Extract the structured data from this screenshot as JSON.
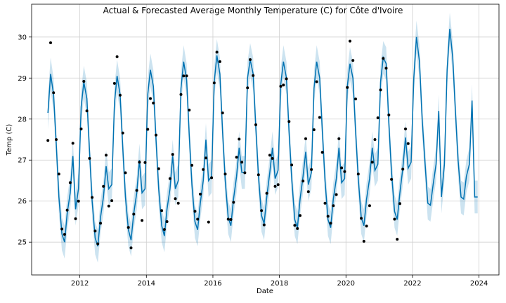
{
  "chart_data": {
    "type": "line",
    "title": "Actual & Forecasted Average Monthly Temperature (C) for Côte d'Ivoire",
    "xlabel": "Date",
    "ylabel": "Temp (C)",
    "xlim": [
      2010.55,
      2024.6
    ],
    "ylim": [
      24.2,
      30.8
    ],
    "grid": true,
    "x_ticks": [
      2012,
      2014,
      2016,
      2018,
      2020,
      2022,
      2024
    ],
    "x_tick_labels": [
      "2012",
      "2014",
      "2016",
      "2018",
      "2020",
      "2022",
      "2024"
    ],
    "y_ticks": [
      25,
      26,
      27,
      28,
      29,
      30
    ],
    "y_tick_labels": [
      "25",
      "26",
      "27",
      "28",
      "29",
      "30"
    ],
    "colors": {
      "forecast": "#0072B2",
      "interval": "#0072B2",
      "actual": "#000000"
    },
    "series": [
      {
        "name": "forecast",
        "kind": "line",
        "x": [
          2011.04,
          2011.12,
          2011.21,
          2011.29,
          2011.37,
          2011.46,
          2011.54,
          2011.62,
          2011.71,
          2011.79,
          2011.87,
          2011.96,
          2012.04,
          2012.12,
          2012.21,
          2012.29,
          2012.37,
          2012.46,
          2012.54,
          2012.62,
          2012.71,
          2012.79,
          2012.87,
          2012.96,
          2013.04,
          2013.12,
          2013.21,
          2013.29,
          2013.37,
          2013.46,
          2013.54,
          2013.62,
          2013.71,
          2013.79,
          2013.87,
          2013.96,
          2014.04,
          2014.12,
          2014.21,
          2014.29,
          2014.37,
          2014.46,
          2014.54,
          2014.62,
          2014.71,
          2014.79,
          2014.87,
          2014.96,
          2015.04,
          2015.12,
          2015.21,
          2015.29,
          2015.37,
          2015.46,
          2015.54,
          2015.62,
          2015.71,
          2015.79,
          2015.87,
          2015.96,
          2016.04,
          2016.12,
          2016.21,
          2016.29,
          2016.37,
          2016.46,
          2016.54,
          2016.62,
          2016.71,
          2016.79,
          2016.87,
          2016.96,
          2017.04,
          2017.12,
          2017.21,
          2017.29,
          2017.37,
          2017.46,
          2017.54,
          2017.62,
          2017.71,
          2017.79,
          2017.87,
          2017.96,
          2018.04,
          2018.12,
          2018.21,
          2018.29,
          2018.37,
          2018.46,
          2018.54,
          2018.62,
          2018.71,
          2018.79,
          2018.87,
          2018.96,
          2019.04,
          2019.12,
          2019.21,
          2019.29,
          2019.37,
          2019.46,
          2019.54,
          2019.62,
          2019.71,
          2019.79,
          2019.87,
          2019.96,
          2020.04,
          2020.12,
          2020.21,
          2020.29,
          2020.37,
          2020.46,
          2020.54,
          2020.62,
          2020.71,
          2020.79,
          2020.87,
          2020.96,
          2021.04,
          2021.12,
          2021.21,
          2021.29,
          2021.37,
          2021.46,
          2021.54,
          2021.62,
          2021.71,
          2021.79,
          2021.87,
          2021.96,
          2022.04,
          2022.12,
          2022.21,
          2022.29,
          2022.37,
          2022.46,
          2022.54,
          2022.62,
          2022.71,
          2022.79,
          2022.87,
          2022.96,
          2023.04,
          2023.12,
          2023.21,
          2023.29,
          2023.37,
          2023.46,
          2023.54,
          2023.62,
          2023.71,
          2023.79,
          2023.87,
          2023.96
        ],
        "y": [
          28.15,
          29.1,
          28.6,
          27.4,
          26.1,
          25.2,
          25.0,
          25.7,
          26.2,
          27.1,
          25.8,
          26.3,
          28.3,
          28.9,
          28.5,
          27.2,
          26.0,
          25.1,
          24.9,
          25.6,
          26.1,
          26.85,
          26.3,
          26.4,
          28.4,
          29.05,
          28.6,
          27.3,
          26.1,
          25.3,
          25.05,
          25.7,
          26.2,
          27.0,
          26.2,
          26.3,
          28.6,
          29.2,
          28.8,
          27.5,
          26.3,
          25.4,
          25.15,
          25.8,
          26.3,
          27.1,
          26.3,
          26.5,
          28.75,
          29.4,
          28.95,
          27.6,
          26.4,
          25.5,
          25.3,
          25.95,
          26.5,
          27.5,
          26.5,
          26.6,
          28.9,
          29.55,
          29.1,
          27.7,
          26.5,
          25.6,
          25.4,
          26.05,
          26.6,
          27.3,
          26.7,
          26.7,
          29.0,
          29.45,
          29.1,
          27.8,
          26.6,
          25.65,
          25.45,
          26.1,
          26.7,
          27.3,
          26.55,
          26.75,
          28.85,
          29.4,
          29.0,
          27.7,
          26.55,
          25.55,
          25.35,
          26.05,
          26.6,
          27.2,
          26.4,
          26.7,
          28.75,
          29.4,
          29.0,
          27.7,
          26.5,
          25.55,
          25.35,
          26.05,
          26.55,
          27.3,
          26.45,
          26.55,
          28.8,
          29.35,
          29.0,
          27.7,
          26.55,
          25.6,
          25.4,
          26.05,
          26.55,
          27.3,
          26.75,
          26.9,
          28.9,
          29.5,
          29.35,
          27.9,
          26.7,
          25.75,
          25.55,
          26.2,
          26.8,
          27.55,
          26.8,
          26.95,
          29.0,
          30.0,
          29.4,
          28.0,
          27.0,
          25.95,
          25.9,
          26.4,
          26.9,
          28.2,
          26.1,
          26.9,
          29.2,
          30.2,
          29.5,
          28.2,
          27.0,
          26.1,
          26.05,
          26.6,
          26.9,
          28.45,
          26.1,
          26.1
        ]
      },
      {
        "name": "uncertainty interval",
        "kind": "band",
        "half_width": 0.4
      },
      {
        "name": "actual",
        "kind": "scatter",
        "x": [
          2011.04,
          2011.12,
          2011.21,
          2011.29,
          2011.37,
          2011.46,
          2011.54,
          2011.62,
          2011.71,
          2011.79,
          2011.87,
          2011.96,
          2012.04,
          2012.12,
          2012.21,
          2012.29,
          2012.37,
          2012.46,
          2012.54,
          2012.62,
          2012.71,
          2012.79,
          2012.87,
          2012.96,
          2013.04,
          2013.12,
          2013.21,
          2013.29,
          2013.37,
          2013.46,
          2013.54,
          2013.62,
          2013.71,
          2013.79,
          2013.87,
          2013.96,
          2014.04,
          2014.12,
          2014.21,
          2014.29,
          2014.37,
          2014.46,
          2014.54,
          2014.62,
          2014.71,
          2014.79,
          2014.87,
          2014.96,
          2015.04,
          2015.12,
          2015.21,
          2015.29,
          2015.37,
          2015.46,
          2015.54,
          2015.62,
          2015.71,
          2015.79,
          2015.87,
          2015.96,
          2016.04,
          2016.12,
          2016.21,
          2016.29,
          2016.37,
          2016.46,
          2016.54,
          2016.62,
          2016.71,
          2016.79,
          2016.87,
          2016.96,
          2017.04,
          2017.12,
          2017.21,
          2017.29,
          2017.37,
          2017.46,
          2017.54,
          2017.62,
          2017.71,
          2017.79,
          2017.87,
          2017.96,
          2018.04,
          2018.12,
          2018.21,
          2018.29,
          2018.37,
          2018.46,
          2018.54,
          2018.62,
          2018.71,
          2018.79,
          2018.87,
          2018.96,
          2019.04,
          2019.12,
          2019.21,
          2019.29,
          2019.37,
          2019.46,
          2019.54,
          2019.62,
          2019.71,
          2019.79,
          2019.87,
          2019.96,
          2020.04,
          2020.12,
          2020.21,
          2020.29,
          2020.37,
          2020.46,
          2020.54,
          2020.62,
          2020.71,
          2020.79,
          2020.87,
          2020.96,
          2021.04,
          2021.12,
          2021.21,
          2021.29,
          2021.37,
          2021.46,
          2021.54,
          2021.62,
          2021.71,
          2021.79,
          2021.87,
          2021.96
        ],
        "y": [
          27.48,
          29.86,
          28.64,
          27.5,
          26.66,
          25.32,
          25.19,
          25.78,
          26.45,
          27.41,
          25.57,
          26.0,
          27.76,
          28.92,
          28.2,
          27.04,
          26.09,
          25.27,
          24.96,
          25.46,
          26.36,
          27.12,
          25.88,
          26.01,
          28.87,
          29.52,
          28.58,
          27.66,
          26.69,
          25.36,
          24.86,
          25.68,
          26.26,
          26.95,
          25.53,
          26.94,
          27.75,
          28.5,
          28.39,
          27.61,
          26.79,
          25.77,
          25.31,
          25.5,
          26.55,
          27.14,
          26.06,
          25.95,
          28.6,
          29.05,
          29.05,
          28.22,
          26.87,
          25.75,
          25.56,
          26.17,
          26.77,
          27.05,
          25.49,
          26.57,
          28.88,
          29.63,
          29.4,
          28.15,
          26.66,
          25.56,
          25.55,
          25.97,
          27.07,
          27.51,
          26.95,
          26.69,
          28.76,
          29.45,
          29.06,
          27.86,
          26.64,
          25.77,
          25.42,
          26.19,
          27.12,
          27.04,
          26.36,
          26.4,
          28.8,
          28.83,
          28.98,
          27.94,
          26.88,
          25.41,
          25.33,
          25.65,
          26.49,
          27.52,
          26.23,
          26.77,
          27.74,
          28.91,
          28.04,
          27.19,
          25.95,
          25.63,
          25.46,
          25.89,
          26.16,
          27.52,
          26.81,
          26.72,
          28.77,
          29.9,
          29.43,
          28.49,
          26.66,
          25.58,
          25.02,
          25.39,
          25.89,
          26.95,
          27.5,
          28.03,
          28.71,
          29.48,
          29.24,
          28.1,
          26.53,
          25.56,
          25.07,
          25.94,
          26.78,
          27.76,
          27.4,
          null
        ]
      }
    ]
  }
}
